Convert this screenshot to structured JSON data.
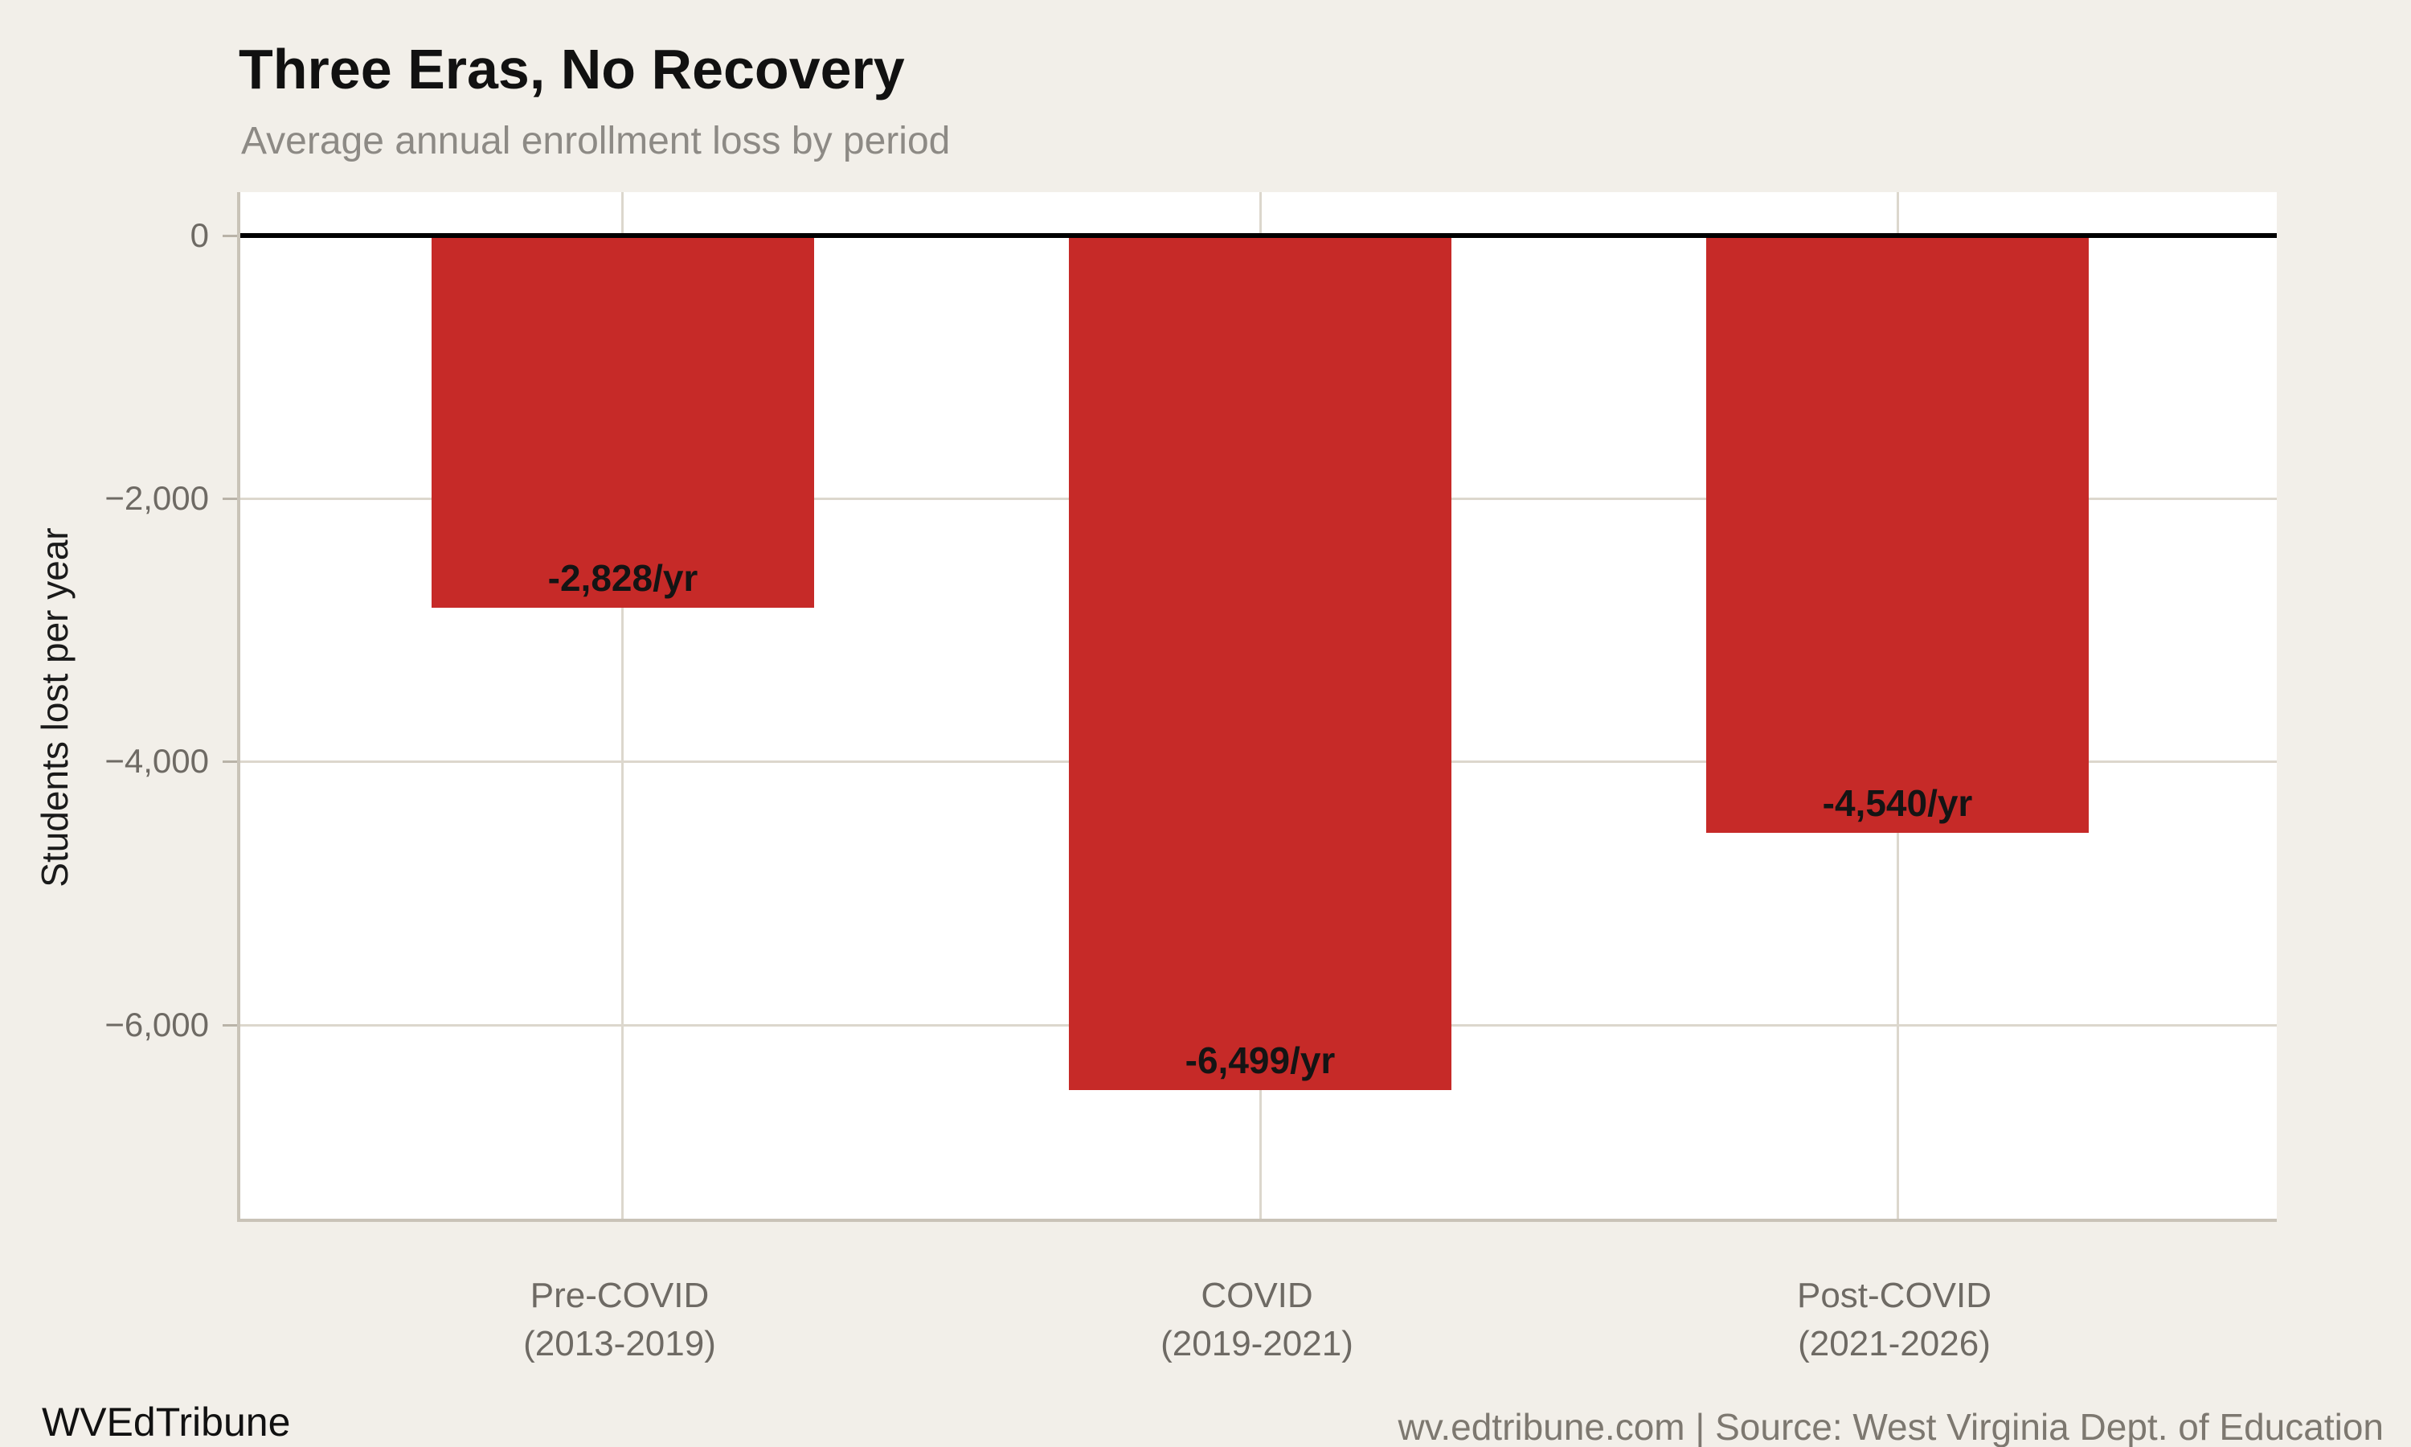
{
  "header": {
    "title": "Three Eras, No Recovery",
    "subtitle": "Average annual enrollment loss by period"
  },
  "chart_data": {
    "type": "bar",
    "title": "Three Eras, No Recovery",
    "subtitle": "Average annual enrollment loss by period",
    "ylabel": "Students lost per year",
    "xlabel": "",
    "categories": [
      {
        "label": "Pre-COVID",
        "years": "(2013-2019)"
      },
      {
        "label": "COVID",
        "years": "(2019-2021)"
      },
      {
        "label": "Post-COVID",
        "years": "(2021-2026)"
      }
    ],
    "values": [
      -2828,
      -6499,
      -4540
    ],
    "bar_labels": [
      "-2,828/yr",
      "-6,499/yr",
      "-4,540/yr"
    ],
    "yticks": [
      0,
      -2000,
      -4000,
      -6000
    ],
    "ytick_labels": [
      "0",
      "−2,000",
      "−4,000",
      "−6,000"
    ],
    "ylim": [
      -7500,
      330
    ],
    "bar_width_fraction": 0.6,
    "grid": true,
    "legend": "none",
    "colors": {
      "bar": "#c62a28",
      "background": "#f2efe9",
      "plot_background": "#ffffff",
      "gridline": "#dcd7cd",
      "zero_line": "#000000",
      "axis_text": "#6e6a64",
      "title_text": "#111111",
      "subtitle_text": "#8d8a85"
    }
  },
  "footer": {
    "brand": "WVEdTribune",
    "attribution": "wv.edtribune.com | Source: West Virginia Dept. of Education"
  }
}
